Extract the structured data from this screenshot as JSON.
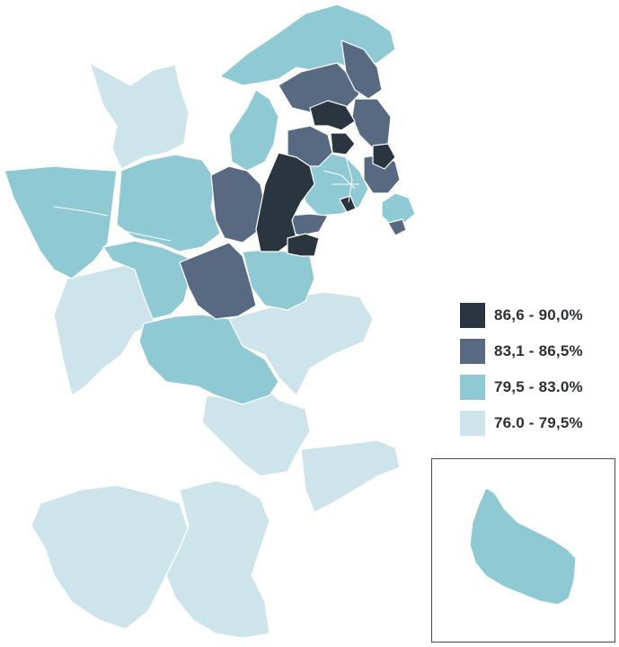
{
  "colors": {
    "tier1": "#2a3540",
    "tier2": "#576a82",
    "tier3": "#8ec9d4",
    "tier4": "#cde4ea",
    "border": "#ffffff"
  },
  "legend": {
    "items": [
      {
        "label": "86,6 - 90,0%",
        "color": "#2a3540"
      },
      {
        "label": "83,1 - 86,5%",
        "color": "#576a82"
      },
      {
        "label": "79,5 - 83.0%",
        "color": "#8ec9d4"
      },
      {
        "label": "76.0 - 79,5%",
        "color": "#cde4ea"
      }
    ]
  }
}
